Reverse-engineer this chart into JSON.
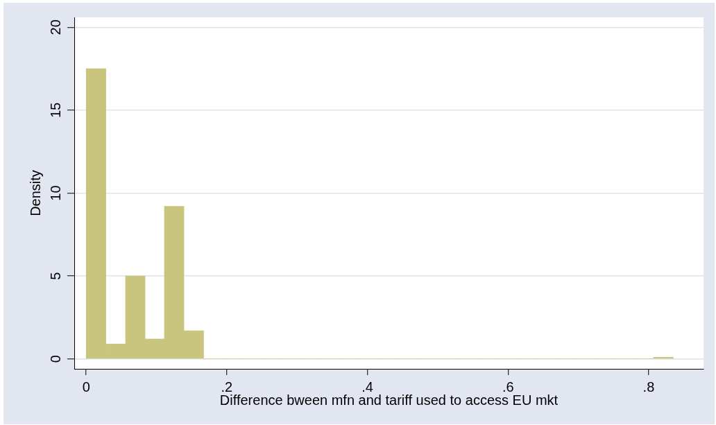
{
  "chart_data": {
    "type": "histogram",
    "xlabel": "Difference bween mfn and tariff used to access EU mkt",
    "ylabel": "Density",
    "bins": [
      0,
      0.028,
      0.056,
      0.084,
      0.111,
      0.139,
      0.167,
      0.195,
      0.223,
      0.251,
      0.278,
      0.306,
      0.334,
      0.362,
      0.39,
      0.418,
      0.445,
      0.473,
      0.501,
      0.529,
      0.557,
      0.585,
      0.612,
      0.64,
      0.668,
      0.696,
      0.724,
      0.752,
      0.779,
      0.807,
      0.835
    ],
    "values": [
      17.5,
      0.9,
      5,
      1.2,
      9.2,
      1.7,
      0,
      0,
      0,
      0,
      0,
      0,
      0,
      0,
      0,
      0,
      0,
      0,
      0,
      0,
      0,
      0,
      0,
      0,
      0,
      0,
      0,
      0,
      0,
      0.1
    ],
    "color": "#c9c47e",
    "xlim": [
      -0.017,
      0.878
    ],
    "ylim": [
      -0.6,
      20.6
    ],
    "xticks": [
      0,
      {
        "value": 0.2,
        "label": ".2"
      },
      {
        "value": 0.4,
        "label": ".4"
      },
      {
        "value": 0.6,
        "label": ".6"
      },
      {
        "value": 0.8,
        "label": ".8"
      }
    ],
    "yticks": [
      0,
      5,
      10,
      15,
      20
    ],
    "grid": "y"
  }
}
